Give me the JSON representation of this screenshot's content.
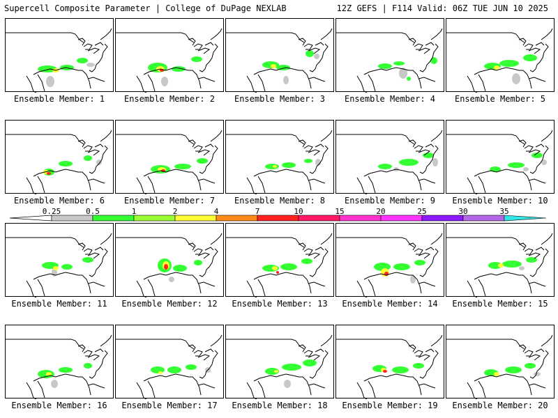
{
  "header": {
    "left_title": "Supercell Composite Parameter | College of DuPage NEXLAB",
    "right_title": "12Z GEFS | F114 Valid: 06Z TUE JUN 10 2025"
  },
  "members": [
    {
      "label": "Ensemble Member: 1"
    },
    {
      "label": "Ensemble Member: 2"
    },
    {
      "label": "Ensemble Member: 3"
    },
    {
      "label": "Ensemble Member: 4"
    },
    {
      "label": "Ensemble Member: 5"
    },
    {
      "label": "Ensemble Member: 6"
    },
    {
      "label": "Ensemble Member: 7"
    },
    {
      "label": "Ensemble Member: 8"
    },
    {
      "label": "Ensemble Member: 9"
    },
    {
      "label": "Ensemble Member: 10"
    },
    {
      "label": "Ensemble Member: 11"
    },
    {
      "label": "Ensemble Member: 12"
    },
    {
      "label": "Ensemble Member: 13"
    },
    {
      "label": "Ensemble Member: 14"
    },
    {
      "label": "Ensemble Member: 15"
    },
    {
      "label": "Ensemble Member: 16"
    },
    {
      "label": "Ensemble Member: 17"
    },
    {
      "label": "Ensemble Member: 18"
    },
    {
      "label": "Ensemble Member: 19"
    },
    {
      "label": "Ensemble Member: 20"
    }
  ],
  "colorbar": {
    "thresholds": [
      "0.25",
      "0.5",
      "1",
      "2",
      "4",
      "7",
      "10",
      "15",
      "20",
      "25",
      "30",
      "35"
    ],
    "colors": [
      "#c8c8c8",
      "#33ff33",
      "#99ff33",
      "#ffff33",
      "#ff8c1a",
      "#ff2020",
      "#ff1a66",
      "#ff33cc",
      "#ff33ff",
      "#8c1aff",
      "#b366e6",
      "#33e6e6"
    ]
  }
}
